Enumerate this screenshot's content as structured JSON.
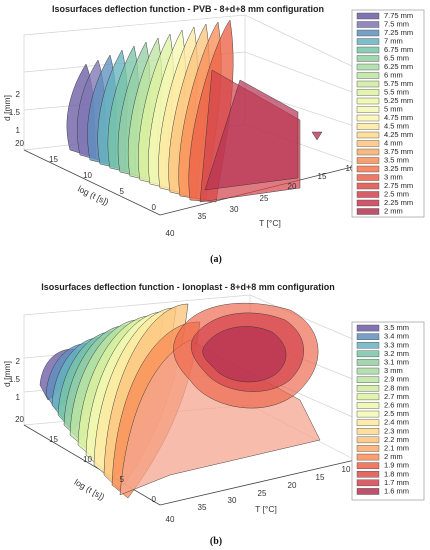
{
  "chart_data": [
    {
      "type": "area",
      "panel_label": "(a)",
      "title": "Isosurfaces deflection function - PVB - 8+d+8 mm configuration",
      "zlabel": "d [mm]",
      "ylabel": "log (t [s])",
      "xlabel": "T [°C]",
      "z_ticks": [
        "1",
        "1.5",
        "2"
      ],
      "y_ticks": [
        "20",
        "15",
        "10",
        "5",
        "0"
      ],
      "x_ticks": [
        "40",
        "35",
        "30",
        "25",
        "20",
        "15",
        "10"
      ],
      "legend": [
        "7.75 mm",
        "7.5 mm",
        "7.25 mm",
        "7 mm",
        "6.75 mm",
        "6.5 mm",
        "6.25 mm",
        "6 mm",
        "5.75 mm",
        "5.5 mm",
        "5.25 mm",
        "5 mm",
        "4.75 mm",
        "4.5 mm",
        "4.25 mm",
        "4 mm",
        "3.75 mm",
        "3.5 mm",
        "3.25 mm",
        "3 mm",
        "2.75 mm",
        "2.5 mm",
        "2.25 mm",
        "2 mm"
      ],
      "legend_colors": [
        "#6b5ca5",
        "#7e76b4",
        "#5f8fbf",
        "#66b3bf",
        "#78c4a8",
        "#93d0a4",
        "#a9dba3",
        "#bde4a1",
        "#cfec9f",
        "#def2a0",
        "#eef8a9",
        "#f6f9b4",
        "#fbf6b0",
        "#fee9a0",
        "#fed98c",
        "#fdc47d",
        "#fcac6b",
        "#f98e57",
        "#f4774c",
        "#ec6147",
        "#df4f4a",
        "#d3424c",
        "#c7384f",
        "#b53253"
      ]
    },
    {
      "type": "area",
      "panel_label": "(b)",
      "title": "Isosurfaces deflection function - Ionoplast - 8+d+8 mm configuration",
      "zlabel": "d [mm]",
      "ylabel": "log (t [s])",
      "xlabel": "T [°C]",
      "z_ticks": [
        "1",
        "1.5",
        "2"
      ],
      "y_ticks": [
        "20",
        "15",
        "10",
        "5",
        "0"
      ],
      "x_ticks": [
        "40",
        "35",
        "30",
        "25",
        "20",
        "15",
        "10"
      ],
      "legend": [
        "3.5 mm",
        "3.4 mm",
        "3.3 mm",
        "3.2 mm",
        "3.1 mm",
        "3 mm",
        "2.9 mm",
        "2.8 mm",
        "2.7 mm",
        "2.6 mm",
        "2.5 mm",
        "2.4 mm",
        "2.3 mm",
        "2.2 mm",
        "2.1 mm",
        "2 mm",
        "1.9 mm",
        "1.8 mm",
        "1.7 mm",
        "1.6 mm"
      ],
      "legend_colors": [
        "#6b5ca5",
        "#5f8fbf",
        "#66b3bf",
        "#78c4a8",
        "#93d0a4",
        "#a9dba3",
        "#bde4a1",
        "#cfec9f",
        "#def2a0",
        "#eef8a9",
        "#f6f9b4",
        "#fee9a0",
        "#fed98c",
        "#fdc47d",
        "#fcac6b",
        "#f98e57",
        "#ec6147",
        "#df4f4a",
        "#d3424c",
        "#b53253"
      ]
    }
  ]
}
